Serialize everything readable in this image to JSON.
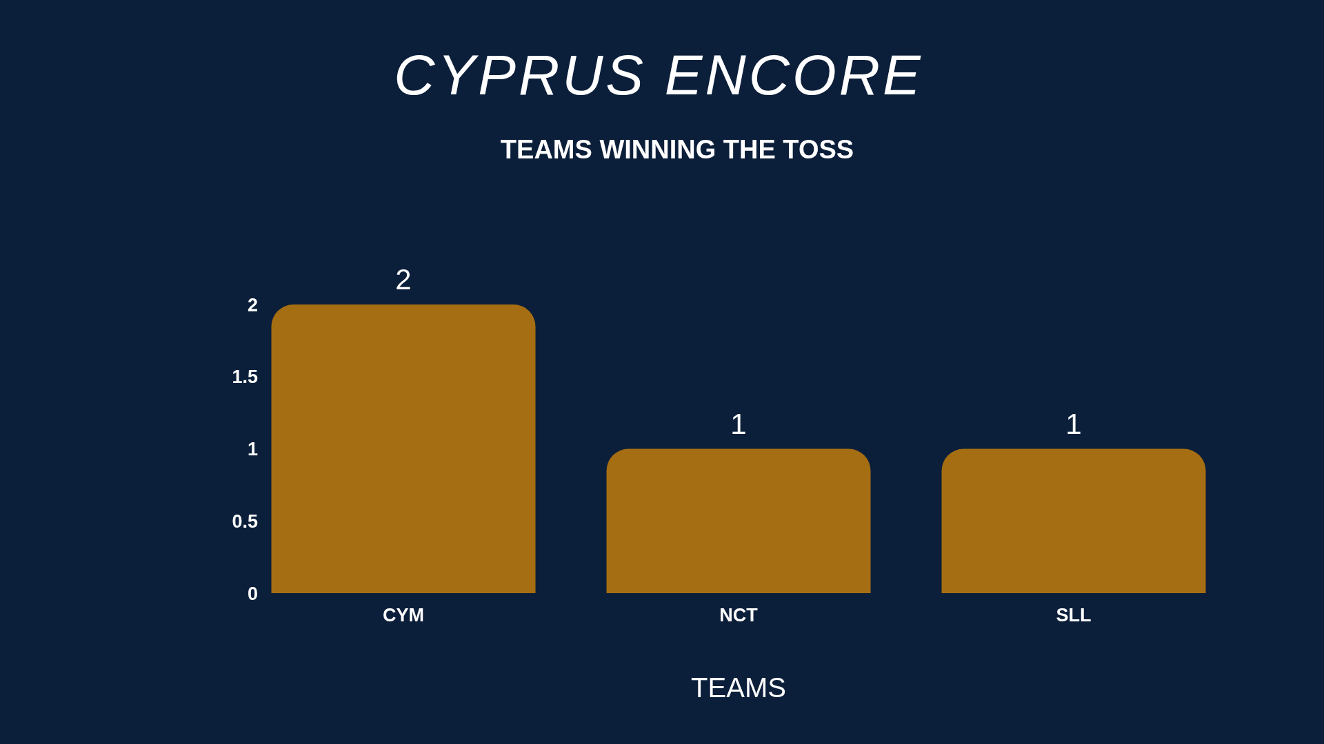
{
  "chart_data": {
    "type": "bar",
    "title": "CYPRUS ENCORE",
    "subtitle": "TEAMS WINNING THE TOSS",
    "xlabel": "TEAMS",
    "categories": [
      "CYM",
      "NCT",
      "SLL"
    ],
    "values": [
      2,
      1,
      1
    ],
    "color": "#a66e12",
    "ylim": [
      0,
      2
    ],
    "yticks": [
      0,
      0.5,
      1,
      1.5,
      2
    ],
    "data_labels": true
  }
}
